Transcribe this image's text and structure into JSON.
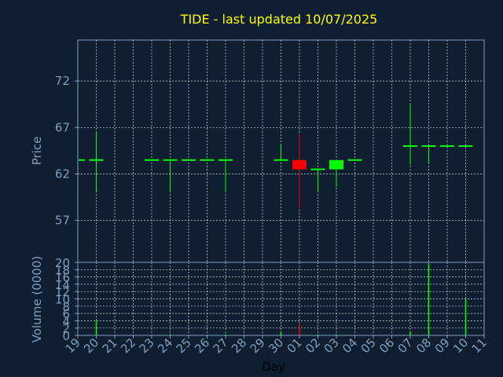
{
  "chart_data": {
    "type": "candlestick",
    "title": "TIDE - last updated 10/07/2025",
    "colors": {
      "background": "#0f1e30",
      "axis": "#7f9fc0",
      "title": "#ffff00",
      "up": "#00ff00",
      "down": "#ff0000",
      "grid": "#ffffff"
    },
    "price_panel": {
      "ylabel": "Price",
      "ylim": [
        52.5,
        76.4
      ],
      "yticks": [
        57,
        62,
        67,
        72
      ],
      "grid": true
    },
    "volume_panel": {
      "ylabel": "Volume (0000)",
      "ylim": [
        0,
        20
      ],
      "yticks": [
        0,
        2,
        4,
        6,
        8,
        10,
        12,
        14,
        16,
        18,
        20
      ],
      "grid": true
    },
    "xlabel": "Day",
    "x_categories": [
      "19",
      "20",
      "21",
      "22",
      "23",
      "24",
      "25",
      "26",
      "27",
      "28",
      "29",
      "30",
      "01",
      "02",
      "03",
      "04",
      "05",
      "06",
      "07",
      "08",
      "09",
      "10",
      "11"
    ],
    "candles": [
      {
        "day": "19",
        "open": 63.5,
        "high": 63.5,
        "low": 63.5,
        "close": 63.5,
        "volume": 0
      },
      {
        "day": "20",
        "open": 63.5,
        "high": 66.6,
        "low": 60.0,
        "close": 63.5,
        "volume": 4
      },
      {
        "day": "23",
        "open": 63.5,
        "high": 63.5,
        "low": 63.5,
        "close": 63.5,
        "volume": 0
      },
      {
        "day": "24",
        "open": 63.5,
        "high": 63.5,
        "low": 60.0,
        "close": 63.5,
        "volume": 0.3
      },
      {
        "day": "25",
        "open": 63.5,
        "high": 63.5,
        "low": 63.5,
        "close": 63.5,
        "volume": 0
      },
      {
        "day": "26",
        "open": 63.5,
        "high": 63.5,
        "low": 63.5,
        "close": 63.5,
        "volume": 0
      },
      {
        "day": "27",
        "open": 63.5,
        "high": 63.5,
        "low": 60.0,
        "close": 63.5,
        "volume": 0.3
      },
      {
        "day": "30",
        "open": 63.5,
        "high": 65.2,
        "low": 63.5,
        "close": 63.5,
        "volume": 1
      },
      {
        "day": "01",
        "open": 63.5,
        "high": 66.3,
        "low": 58.2,
        "close": 62.5,
        "volume": 3
      },
      {
        "day": "02",
        "open": 62.5,
        "high": 62.5,
        "low": 60.1,
        "close": 62.5,
        "volume": 0.3
      },
      {
        "day": "03",
        "open": 62.5,
        "high": 63.5,
        "low": 60.6,
        "close": 63.5,
        "volume": 0.3
      },
      {
        "day": "04",
        "open": 63.5,
        "high": 63.5,
        "low": 63.5,
        "close": 63.5,
        "volume": 0
      },
      {
        "day": "07",
        "open": 65.0,
        "high": 69.6,
        "low": 63.0,
        "close": 65.0,
        "volume": 1
      },
      {
        "day": "08",
        "open": 65.0,
        "high": 65.0,
        "low": 63.2,
        "close": 65.0,
        "volume": 19.5
      },
      {
        "day": "09",
        "open": 65.0,
        "high": 65.0,
        "low": 65.0,
        "close": 65.0,
        "volume": 0
      },
      {
        "day": "10",
        "open": 65.0,
        "high": 65.0,
        "low": 65.0,
        "close": 65.0,
        "volume": 10
      }
    ]
  }
}
